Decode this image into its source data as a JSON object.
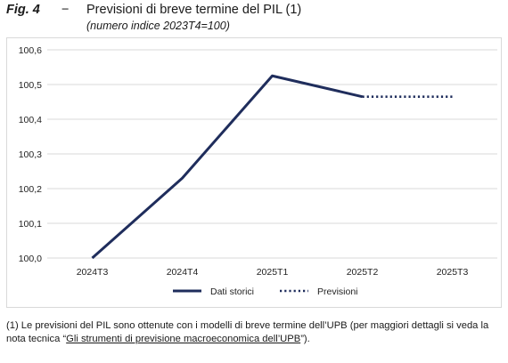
{
  "figure": {
    "number": "Fig. 4",
    "dash": "−",
    "title": "Previsioni di breve termine del PIL (1)",
    "subtitle": "(numero indice 2023T4=100)"
  },
  "chart_data": {
    "type": "line",
    "categories": [
      "2024T3",
      "2024T4",
      "2025T1",
      "2025T2",
      "2025T3"
    ],
    "ylim": [
      100.0,
      100.6
    ],
    "yticks": [
      "100,0",
      "100,1",
      "100,2",
      "100,3",
      "100,4",
      "100,5",
      "100,6"
    ],
    "grid": true,
    "legend_position": "bottom",
    "series": [
      {
        "name": "Dati storici",
        "style": "solid",
        "color": "#1f2d5c",
        "values": [
          100.0,
          100.23,
          100.525,
          100.465,
          null
        ]
      },
      {
        "name": "Previsioni",
        "style": "dotted",
        "color": "#1f2d5c",
        "values": [
          null,
          null,
          null,
          100.465,
          100.465
        ]
      }
    ]
  },
  "footnote": {
    "text_before": "(1) Le previsioni del PIL sono ottenute con i modelli di breve termine dell’UPB (per maggiori dettagli si veda la nota tecnica “",
    "link_text": "Gli strumenti di previsione macroeconomica dell’UPB",
    "text_after": "”)."
  }
}
